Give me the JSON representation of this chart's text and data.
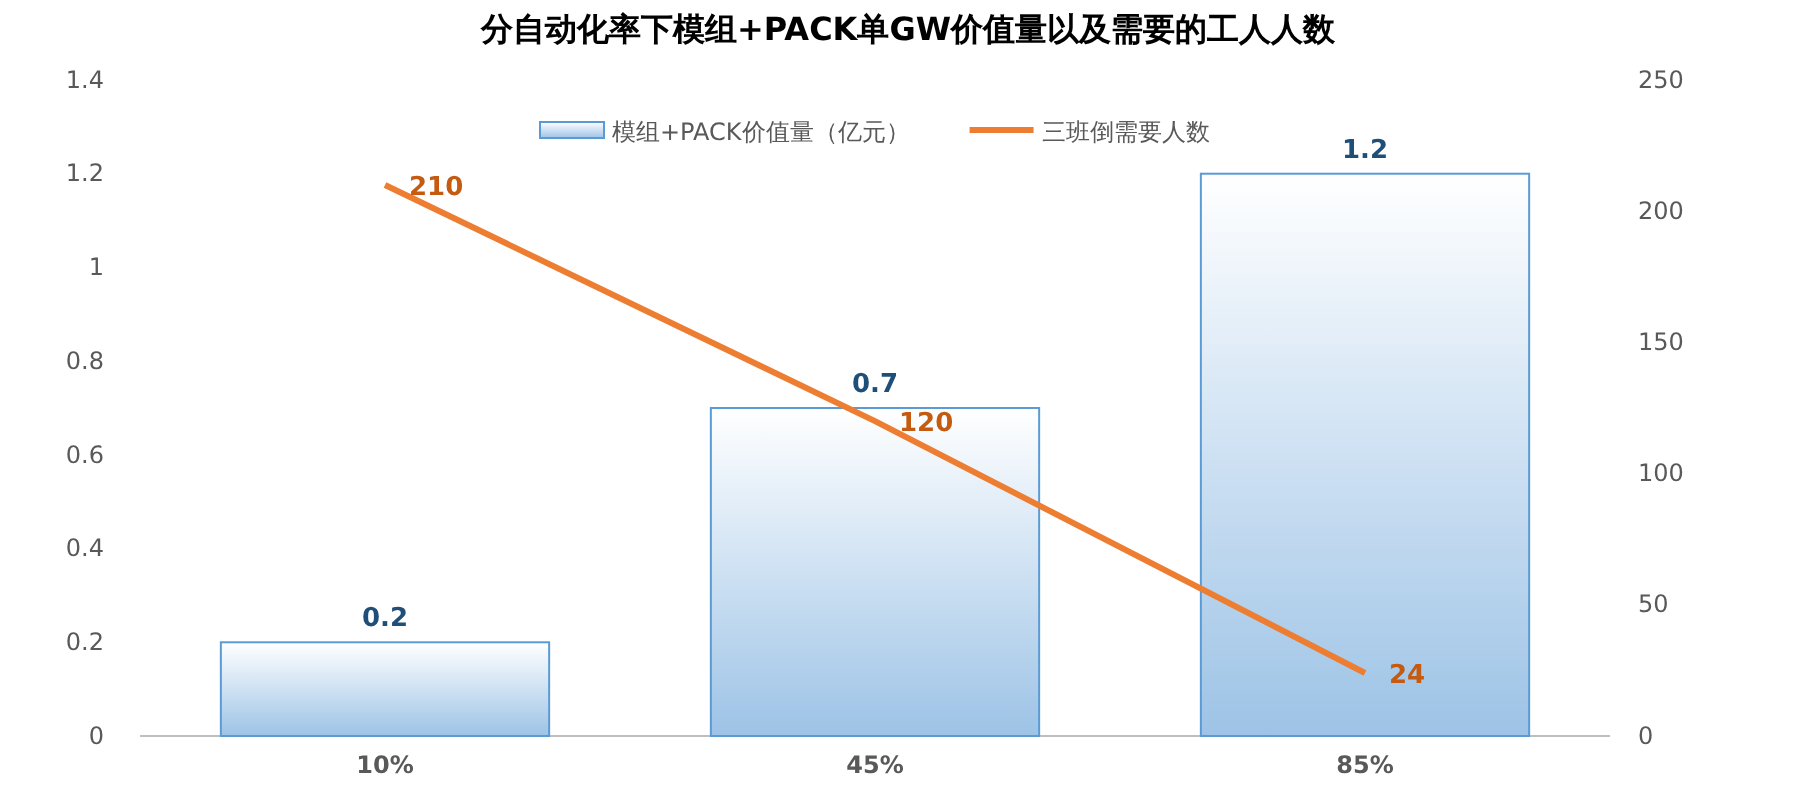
{
  "chart_data": {
    "type": "bar",
    "title": "分自动化率下模组+PACK单GW价值量以及需要的工人人数",
    "categories": [
      "10%",
      "45%",
      "85%"
    ],
    "series": [
      {
        "name": "模组+PACK价值量（亿元）",
        "color": "#5b9bd5",
        "values": [
          0.2,
          0.7,
          1.2
        ]
      },
      {
        "name": "三班倒需要人数",
        "type": "line",
        "axis": "y2",
        "color": "#ed7d31",
        "values": [
          210,
          120,
          24
        ]
      }
    ],
    "ylim": [
      0,
      1.4
    ],
    "yticks": [
      0,
      0.2,
      0.4,
      0.6,
      0.8,
      1,
      1.2,
      1.4
    ],
    "y2lim": [
      0,
      250
    ],
    "y2ticks": [
      0,
      50,
      100,
      150,
      200,
      250
    ],
    "data_labels": true,
    "legend": "top",
    "grid": false,
    "marker": "none"
  }
}
